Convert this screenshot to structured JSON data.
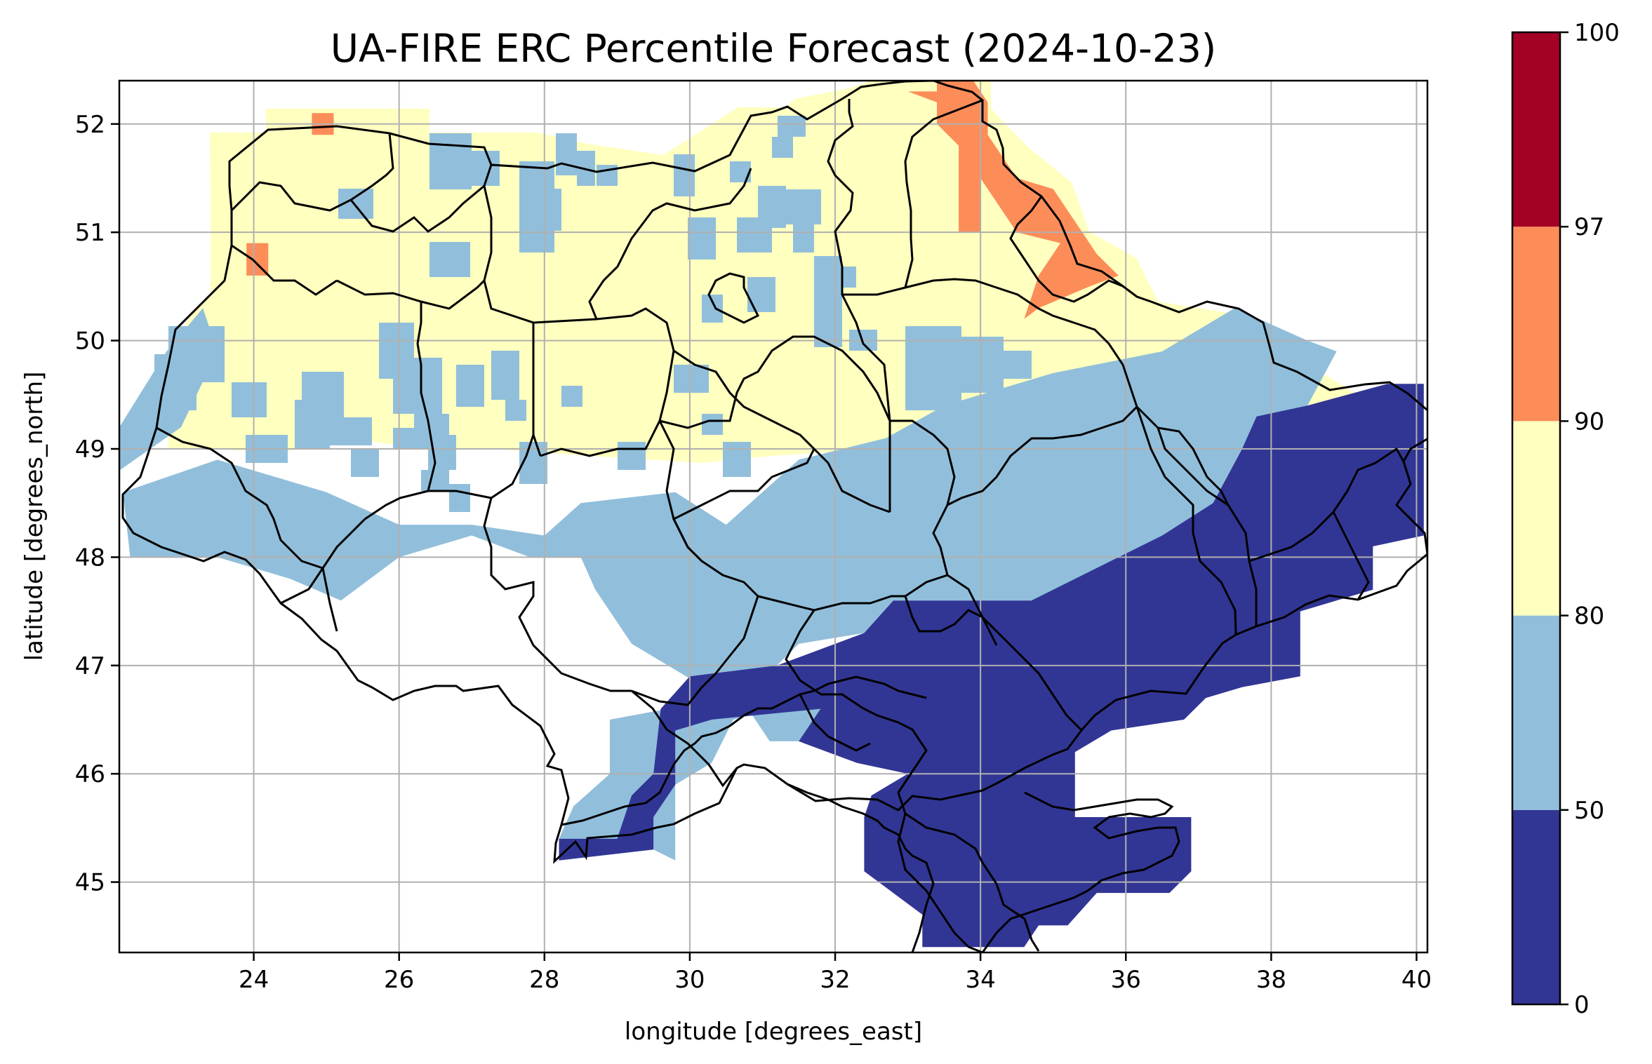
{
  "chart_data": {
    "type": "heatmap",
    "title": "UA-FIRE ERC Percentile Forecast (2024-10-23)",
    "xlabel": "longitude [degrees_east]",
    "ylabel": "latitude [degrees_north]",
    "xlim": [
      22.15,
      40.15
    ],
    "ylim": [
      44.35,
      52.4
    ],
    "xticks": [
      24,
      26,
      28,
      30,
      32,
      34,
      36,
      38,
      40
    ],
    "yticks": [
      45,
      46,
      47,
      48,
      49,
      50,
      51,
      52
    ],
    "grid": true,
    "colorbar": {
      "boundaries": [
        0,
        50,
        80,
        90,
        97,
        100
      ],
      "tick_labels": [
        "0",
        "50",
        "80",
        "90",
        "97",
        "100"
      ],
      "colors": [
        "#313695",
        "#91bfdb",
        "#ffffbf",
        "#fc8d59",
        "#a50026"
      ]
    },
    "zones": [
      {
        "category": "50-80",
        "polygon": [
          [
            22.15,
            48.8
          ],
          [
            23.0,
            49.2
          ],
          [
            23.5,
            49.9
          ],
          [
            23.3,
            50.3
          ],
          [
            22.8,
            49.9
          ],
          [
            22.15,
            49.2
          ]
        ]
      },
      {
        "category": "50-80",
        "polygon": [
          [
            22.2,
            48.6
          ],
          [
            23.5,
            48.9
          ],
          [
            25.0,
            48.6
          ],
          [
            26.0,
            48.3
          ],
          [
            27.0,
            48.3
          ],
          [
            28.0,
            48.2
          ],
          [
            28.5,
            48.5
          ],
          [
            29.8,
            48.6
          ],
          [
            30.5,
            48.3
          ],
          [
            31.5,
            48.9
          ],
          [
            32.7,
            49.1
          ],
          [
            33.5,
            49.4
          ],
          [
            35.0,
            49.7
          ],
          [
            36.5,
            49.9
          ],
          [
            37.5,
            50.3
          ],
          [
            38.5,
            50.0
          ],
          [
            38.9,
            49.9
          ],
          [
            38.5,
            49.4
          ],
          [
            37.6,
            49.0
          ],
          [
            37.2,
            48.5
          ],
          [
            36.5,
            48.2
          ],
          [
            35.6,
            47.9
          ],
          [
            34.7,
            47.6
          ],
          [
            33.5,
            47.6
          ],
          [
            32.8,
            47.6
          ],
          [
            32.4,
            47.3
          ],
          [
            31.5,
            47.2
          ],
          [
            31.2,
            47.0
          ],
          [
            30.0,
            46.9
          ],
          [
            29.7,
            46.6
          ],
          [
            28.9,
            46.5
          ],
          [
            28.9,
            46.0
          ],
          [
            28.4,
            45.7
          ],
          [
            28.2,
            45.4
          ],
          [
            29.5,
            45.3
          ],
          [
            29.8,
            45.2
          ],
          [
            29.8,
            45.9
          ],
          [
            30.3,
            46.1
          ],
          [
            30.6,
            46.5
          ],
          [
            31.1,
            46.6
          ],
          [
            31.8,
            46.6
          ],
          [
            31.8,
            46.3
          ],
          [
            31.1,
            46.3
          ],
          [
            30.8,
            46.6
          ],
          [
            30.2,
            46.8
          ],
          [
            29.2,
            47.2
          ],
          [
            28.7,
            47.7
          ],
          [
            28.5,
            48.0
          ],
          [
            27.8,
            48.0
          ],
          [
            27.0,
            48.2
          ],
          [
            26.0,
            48.0
          ],
          [
            25.2,
            47.6
          ],
          [
            24.5,
            47.8
          ],
          [
            23.5,
            48.0
          ],
          [
            22.3,
            48.0
          ]
        ]
      },
      {
        "category": "0-50",
        "polygon": [
          [
            37.8,
            49.3
          ],
          [
            38.5,
            49.4
          ],
          [
            39.6,
            49.6
          ],
          [
            40.1,
            49.6
          ],
          [
            40.1,
            48.2
          ],
          [
            39.4,
            48.1
          ],
          [
            39.4,
            47.7
          ],
          [
            38.4,
            47.5
          ],
          [
            38.4,
            46.9
          ],
          [
            37.6,
            46.8
          ],
          [
            37.1,
            46.7
          ],
          [
            36.8,
            46.5
          ],
          [
            35.8,
            46.4
          ],
          [
            35.3,
            46.2
          ],
          [
            35.3,
            45.6
          ],
          [
            36.9,
            45.6
          ],
          [
            36.9,
            45.1
          ],
          [
            36.6,
            44.9
          ],
          [
            35.6,
            44.9
          ],
          [
            35.2,
            44.6
          ],
          [
            34.8,
            44.6
          ],
          [
            34.6,
            44.4
          ],
          [
            33.2,
            44.4
          ],
          [
            33.2,
            44.7
          ],
          [
            32.4,
            45.1
          ],
          [
            32.4,
            45.6
          ],
          [
            32.5,
            45.8
          ],
          [
            33.0,
            46.0
          ],
          [
            32.3,
            46.1
          ],
          [
            31.5,
            46.3
          ],
          [
            31.8,
            46.6
          ],
          [
            30.3,
            46.5
          ],
          [
            29.8,
            46.4
          ],
          [
            29.8,
            45.9
          ],
          [
            29.5,
            45.6
          ],
          [
            29.5,
            45.3
          ],
          [
            28.2,
            45.2
          ],
          [
            28.2,
            45.4
          ],
          [
            29.0,
            45.4
          ],
          [
            29.2,
            45.8
          ],
          [
            29.5,
            46.0
          ],
          [
            29.6,
            46.6
          ],
          [
            30.0,
            46.9
          ],
          [
            31.2,
            47.0
          ],
          [
            32.4,
            47.3
          ],
          [
            32.8,
            47.6
          ],
          [
            33.5,
            47.6
          ],
          [
            34.7,
            47.6
          ],
          [
            35.6,
            47.9
          ],
          [
            36.5,
            48.2
          ],
          [
            37.2,
            48.5
          ],
          [
            37.6,
            49.0
          ]
        ]
      },
      {
        "category": "90-97",
        "polygon": [
          [
            33.0,
            52.3
          ],
          [
            33.4,
            52.3
          ],
          [
            33.4,
            52.4
          ],
          [
            33.9,
            52.4
          ],
          [
            34.1,
            52.2
          ],
          [
            34.1,
            51.9
          ],
          [
            34.5,
            51.5
          ],
          [
            35.0,
            51.4
          ],
          [
            35.3,
            51.1
          ],
          [
            35.6,
            50.8
          ],
          [
            35.9,
            50.6
          ],
          [
            35.5,
            50.5
          ],
          [
            34.8,
            50.3
          ],
          [
            34.6,
            50.2
          ],
          [
            34.8,
            50.6
          ],
          [
            35.1,
            50.9
          ],
          [
            34.5,
            51.0
          ],
          [
            34.0,
            51.5
          ],
          [
            34.0,
            51.0
          ],
          [
            33.7,
            51.0
          ],
          [
            33.7,
            51.8
          ],
          [
            33.4,
            52.0
          ],
          [
            33.4,
            52.2
          ]
        ]
      },
      {
        "category": "90-97",
        "polygon": [
          [
            24.8,
            52.1
          ],
          [
            25.1,
            52.1
          ],
          [
            25.1,
            51.9
          ],
          [
            24.8,
            51.9
          ]
        ]
      },
      {
        "category": "90-97",
        "polygon": [
          [
            23.9,
            50.9
          ],
          [
            24.2,
            50.9
          ],
          [
            24.2,
            50.6
          ],
          [
            23.9,
            50.6
          ]
        ]
      }
    ]
  }
}
